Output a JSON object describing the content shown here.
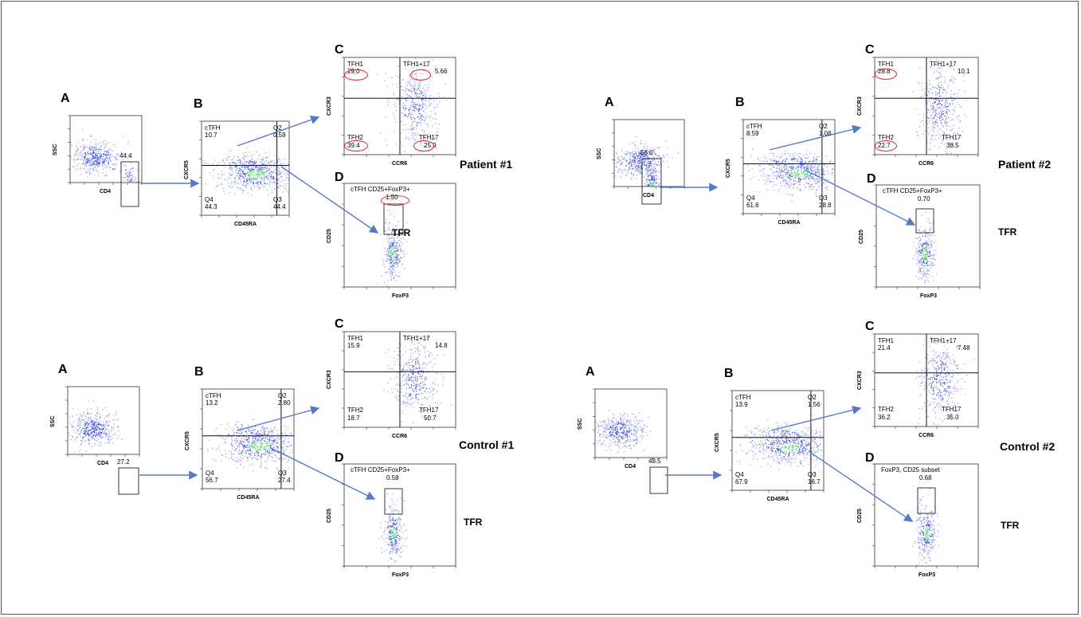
{
  "colors": {
    "arrow": "#5a78c8",
    "circle": "#dd2222",
    "dots_blue": "#3344dd",
    "dots_hot": "#44cc66"
  },
  "panels": [
    {
      "id": "patient1",
      "group_label": "Patient #1",
      "tfr_label": "TFR",
      "A": {
        "letter": "A",
        "gate_value": "44.4",
        "x_label": "CD4",
        "y_label": "SSC"
      },
      "B": {
        "letter": "B",
        "x_label": "CD45RA",
        "y_label": "CXCR5",
        "q1_name": "cTFH",
        "q1_value": "10.7",
        "q2_name": "Q2",
        "q2_value": "0.59",
        "q4_name": "Q4",
        "q4_value": "44.3",
        "q3_name": "Q3",
        "q3_value": "44.4"
      },
      "C": {
        "letter": "C",
        "x_label": "CCR6",
        "y_label": "CXCR3",
        "tl_name": "TFH1",
        "tl_value": "29.0",
        "tr_name": "TFH1+17",
        "tr_value": "5.66",
        "bl_name": "TFH2",
        "bl_value": "39.4",
        "br_name": "TFH17",
        "br_value": "25.9"
      },
      "D": {
        "letter": "D",
        "x_label": "FoxP3",
        "y_label": "CD25",
        "gate_name": "cTFH CD25+FoxP3+",
        "gate_value": "1.50"
      }
    },
    {
      "id": "patient2",
      "group_label": "Patient #2",
      "tfr_label": "TFR",
      "A": {
        "letter": "A",
        "gate_value": "56.0",
        "x_label": "CD4",
        "y_label": "SSC"
      },
      "B": {
        "letter": "B",
        "x_label": "CD45RA",
        "y_label": "CXCR5",
        "q1_name": "cTFH",
        "q1_value": "8.59",
        "q2_name": "Q2",
        "q2_value": "1.08",
        "q4_name": "Q4",
        "q4_value": "61.6",
        "q3_name": "Q3",
        "q3_value": "28.8"
      },
      "C": {
        "letter": "C",
        "x_label": "CCR6",
        "y_label": "CXCR3",
        "tl_name": "TFH1",
        "tl_value": "28.8",
        "tr_name": "TFH1+17",
        "tr_value": "10.1",
        "bl_name": "TFH2",
        "bl_value": "22.7",
        "br_name": "TFH17",
        "br_value": "38.5"
      },
      "D": {
        "letter": "D",
        "x_label": "FoxP3",
        "y_label": "CD25",
        "gate_name": "cTFH CD25+FoxP3+",
        "gate_value": "0.70"
      }
    },
    {
      "id": "control1",
      "group_label": "Control #1",
      "tfr_label": "TFR",
      "A": {
        "letter": "A",
        "gate_value": "27.2",
        "x_label": "CD4",
        "y_label": "SSC"
      },
      "B": {
        "letter": "B",
        "x_label": "CD45RA",
        "y_label": "CXCR5",
        "q1_name": "cTFH",
        "q1_value": "13.2",
        "q2_name": "Q2",
        "q2_value": "2.80",
        "q4_name": "Q4",
        "q4_value": "56.7",
        "q3_name": "Q3",
        "q3_value": "27.4"
      },
      "C": {
        "letter": "C",
        "x_label": "CCR6",
        "y_label": "CXCR3",
        "tl_name": "TFH1",
        "tl_value": "15.9",
        "tr_name": "TFH1+17",
        "tr_value": "14.8",
        "bl_name": "TFH2",
        "bl_value": "18.7",
        "br_name": "TFH17",
        "br_value": "50.7"
      },
      "D": {
        "letter": "D",
        "x_label": "FoxP3",
        "y_label": "CD25",
        "gate_name": "cTFH CD25+FoxP3+",
        "gate_value": "0.58"
      }
    },
    {
      "id": "control2",
      "group_label": "Control #2",
      "tfr_label": "TFR",
      "A": {
        "letter": "A",
        "gate_value": "48.5",
        "x_label": "CD4",
        "y_label": "SSC"
      },
      "B": {
        "letter": "B",
        "x_label": "CD45RA",
        "y_label": "CXCR5",
        "q1_name": "cTFH",
        "q1_value": "13.9",
        "q2_name": "Q2",
        "q2_value": "1.56",
        "q4_name": "Q4",
        "q4_value": "67.9",
        "q3_name": "Q3",
        "q3_value": "16.7"
      },
      "C": {
        "letter": "C",
        "x_label": "CCR6",
        "y_label": "CXCR3",
        "tl_name": "TFH1",
        "tl_value": "21.4",
        "tr_name": "TFH1+17",
        "tr_value": "7.48",
        "bl_name": "TFH2",
        "bl_value": "36.2",
        "br_name": "TFH17",
        "br_value": "35.0"
      },
      "D": {
        "letter": "D",
        "x_label": "FoxP3",
        "y_label": "CD25",
        "gate_name": "FoxP3, CD25 subset",
        "gate_value": "0.68"
      }
    }
  ]
}
